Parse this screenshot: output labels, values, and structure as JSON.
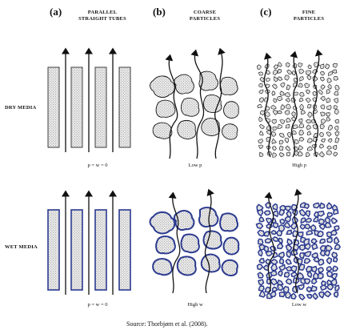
{
  "panels": [
    {
      "label": "(a)",
      "title_line1": "PARALLEL",
      "title_line2": "STRAIGHT TUBES"
    },
    {
      "label": "(b)",
      "title_line1": "COARSE",
      "title_line2": "PARTICLES"
    },
    {
      "label": "(c)",
      "title_line1": "FINE",
      "title_line2": "PARTICLES"
    }
  ],
  "rows": [
    {
      "label": "DRY MEDIA"
    },
    {
      "label": "WET MEDIA"
    }
  ],
  "captions": {
    "dry": [
      "p = w = 0",
      "Low p",
      "High p"
    ],
    "wet": [
      "p = w = 0",
      "High w",
      "Low w"
    ]
  },
  "source": "Source: Thorbjørn et al. (2008).",
  "colors": {
    "stroke": "#111111",
    "stipple": "#777777",
    "particle_fill": "#e4e4e4",
    "water": "#2b3a8f"
  }
}
